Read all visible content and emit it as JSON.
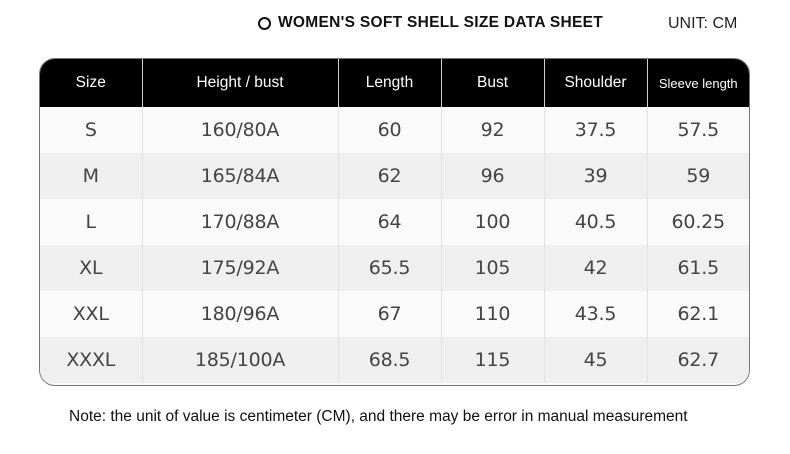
{
  "header": {
    "title": "WOMEN'S SOFT SHELL SIZE DATA SHEET",
    "unit": "UNIT: CM"
  },
  "table": {
    "columns": [
      "Size",
      "Height / bust",
      "Length",
      "Bust",
      "Shoulder",
      "Sleeve length"
    ],
    "rows": [
      [
        "S",
        "160/80A",
        "60",
        "92",
        "37.5",
        "57.5"
      ],
      [
        "M",
        "165/84A",
        "62",
        "96",
        "39",
        "59"
      ],
      [
        "L",
        "170/88A",
        "64",
        "100",
        "40.5",
        "60.25"
      ],
      [
        "XL",
        "175/92A",
        "65.5",
        "105",
        "42",
        "61.5"
      ],
      [
        "XXL",
        "180/96A",
        "67",
        "110",
        "43.5",
        "62.1"
      ],
      [
        "XXXL",
        "185/100A",
        "68.5",
        "115",
        "45",
        "62.7"
      ]
    ]
  },
  "note": "Note: the unit of value is centimeter (CM), and there may be error in manual measurement"
}
